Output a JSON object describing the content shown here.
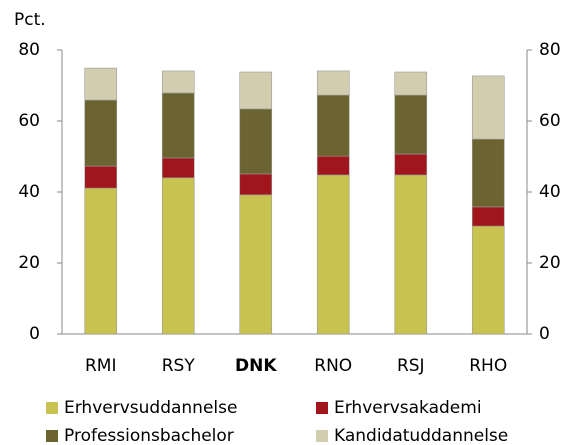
{
  "chart_data": {
    "type": "stacked_bar",
    "y_label": "Pct.",
    "categories": [
      "RMI",
      "RSY",
      "DNK",
      "RNO",
      "RSJ",
      "RHO"
    ],
    "series": [
      {
        "name": "Erhvervsuddannelse",
        "color": "#c8c350",
        "values": [
          41.1,
          44.0,
          39.2,
          44.8,
          44.8,
          30.4
        ]
      },
      {
        "name": "Erhvervsakademi",
        "color": "#a0161c",
        "values": [
          6.2,
          5.6,
          5.9,
          5.3,
          5.9,
          5.4
        ]
      },
      {
        "name": "Professionsbachelor",
        "color": "#6b6430",
        "values": [
          18.6,
          18.3,
          18.3,
          17.2,
          16.6,
          19.1
        ]
      },
      {
        "name": "Kandidatuddannelse",
        "color": "#d3cdb0",
        "values": [
          9.0,
          6.2,
          10.4,
          6.8,
          6.5,
          17.8
        ]
      }
    ],
    "ylim": [
      0,
      80
    ],
    "yticks": [
      0,
      20,
      40,
      60,
      80
    ],
    "y2lim": [
      0,
      80
    ],
    "y2ticks": [
      0,
      20,
      40,
      60,
      80
    ]
  }
}
